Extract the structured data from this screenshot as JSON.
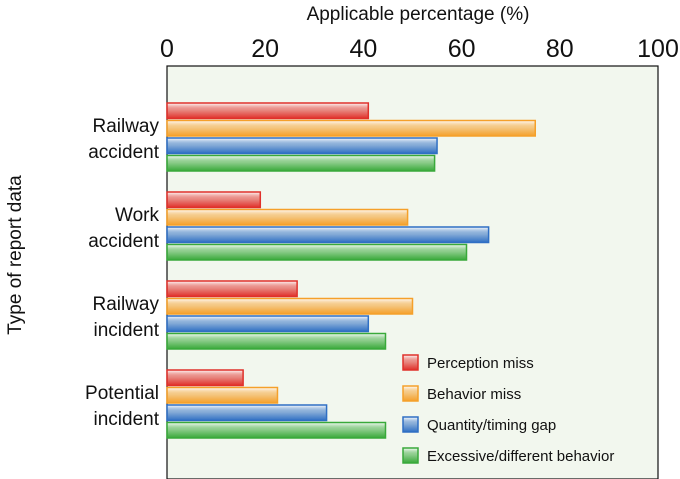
{
  "chart_data": {
    "type": "bar",
    "orientation": "horizontal",
    "xlabel": "Applicable percentage (%)",
    "ylabel": "Type of report data",
    "xlim": [
      0,
      100
    ],
    "xticks": [
      "0",
      "20",
      "40",
      "60",
      "80",
      "100"
    ],
    "categories": [
      {
        "line1": "Railway",
        "line2": "accident"
      },
      {
        "line1": "Work",
        "line2": "accident"
      },
      {
        "line1": "Railway",
        "line2": "incident"
      },
      {
        "line1": "Potential",
        "line2": "incident"
      }
    ],
    "series": [
      {
        "name": "Perception miss",
        "color": "#e0302a",
        "values": [
          41,
          19,
          26.5,
          15.5
        ]
      },
      {
        "name": "Behavior miss",
        "color": "#f5a02a",
        "values": [
          75,
          49,
          50,
          22.5
        ]
      },
      {
        "name": "Quantity/timing gap",
        "color": "#2f6fc4",
        "values": [
          55,
          65.5,
          41,
          32.5
        ]
      },
      {
        "name": "Excessive/different behavior",
        "color": "#39a93a",
        "values": [
          54.5,
          61,
          44.5,
          44.5
        ]
      }
    ],
    "grid": false,
    "legend_position": "bottom-right",
    "plot_background": "#f2f7ee"
  }
}
